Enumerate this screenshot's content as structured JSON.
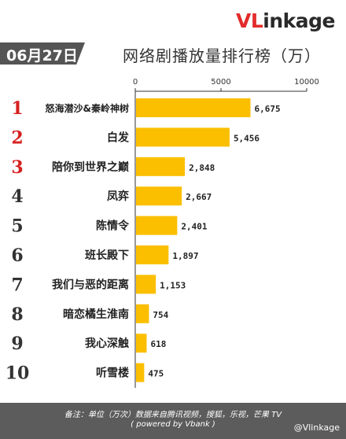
{
  "brand": {
    "logo_v": "VL",
    "logo_rest": "inkage"
  },
  "date_label": "06月27日",
  "chart_data": {
    "type": "bar",
    "orientation": "horizontal",
    "title": "网络剧播放量排行榜（万）",
    "ticks": [
      "0",
      "5000",
      "10000"
    ],
    "xlim": [
      0,
      10000
    ],
    "grid": false,
    "bar_color": "#fbbf00",
    "categories": [
      "怒海潜沙&秦岭神树",
      "白发",
      "陪你到世界之巅",
      "凤弈",
      "陈情令",
      "班长殿下",
      "我们与恶的距离",
      "暗恋橘生淮南",
      "我心深触",
      "听雪楼"
    ],
    "ranks": [
      "1",
      "2",
      "3",
      "4",
      "5",
      "6",
      "7",
      "8",
      "9",
      "10"
    ],
    "values": [
      6675,
      5456,
      2848,
      2667,
      2401,
      1897,
      1153,
      754,
      618,
      475
    ],
    "value_labels": [
      "6,675",
      "5,456",
      "2,848",
      "2,667",
      "2,401",
      "1,897",
      "1,153",
      "754",
      "618",
      "475"
    ]
  },
  "colors": {
    "rank_top3": "#d62020",
    "rank_other": "#333333",
    "footer_bg": "#5c5c5c"
  },
  "footer": {
    "note_line1": "备注：单位（万次）数据来自腾讯视频，搜狐，乐视，芒果 TV",
    "note_line2": "( powered by Vbank )",
    "weibo": "@Vlinkage"
  }
}
